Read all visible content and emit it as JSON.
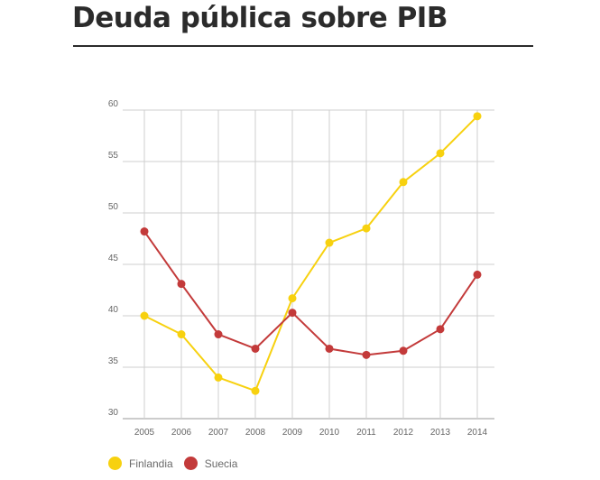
{
  "title": "Deuda pública sobre PIB",
  "colors": {
    "Finlandia": "#f7d10f",
    "Suecia": "#c33a3a",
    "grid": "#cfcfcf",
    "axis": "#999999"
  },
  "chart_data": {
    "type": "line",
    "title": "Deuda pública sobre PIB",
    "xlabel": "",
    "ylabel": "",
    "x": [
      "2005",
      "2006",
      "2007",
      "2008",
      "2009",
      "2010",
      "2011",
      "2012",
      "2013",
      "2014"
    ],
    "ylim": [
      30,
      60
    ],
    "yticks": [
      30,
      35,
      40,
      45,
      50,
      55,
      60
    ],
    "grid": true,
    "legend": "bottom-left",
    "series": [
      {
        "name": "Finlandia",
        "values": [
          40.0,
          38.2,
          34.0,
          32.7,
          41.7,
          47.1,
          48.5,
          53.0,
          55.8,
          59.4
        ]
      },
      {
        "name": "Suecia",
        "values": [
          48.2,
          43.1,
          38.2,
          36.8,
          40.3,
          36.8,
          36.2,
          36.6,
          38.7,
          44.0
        ]
      }
    ]
  }
}
